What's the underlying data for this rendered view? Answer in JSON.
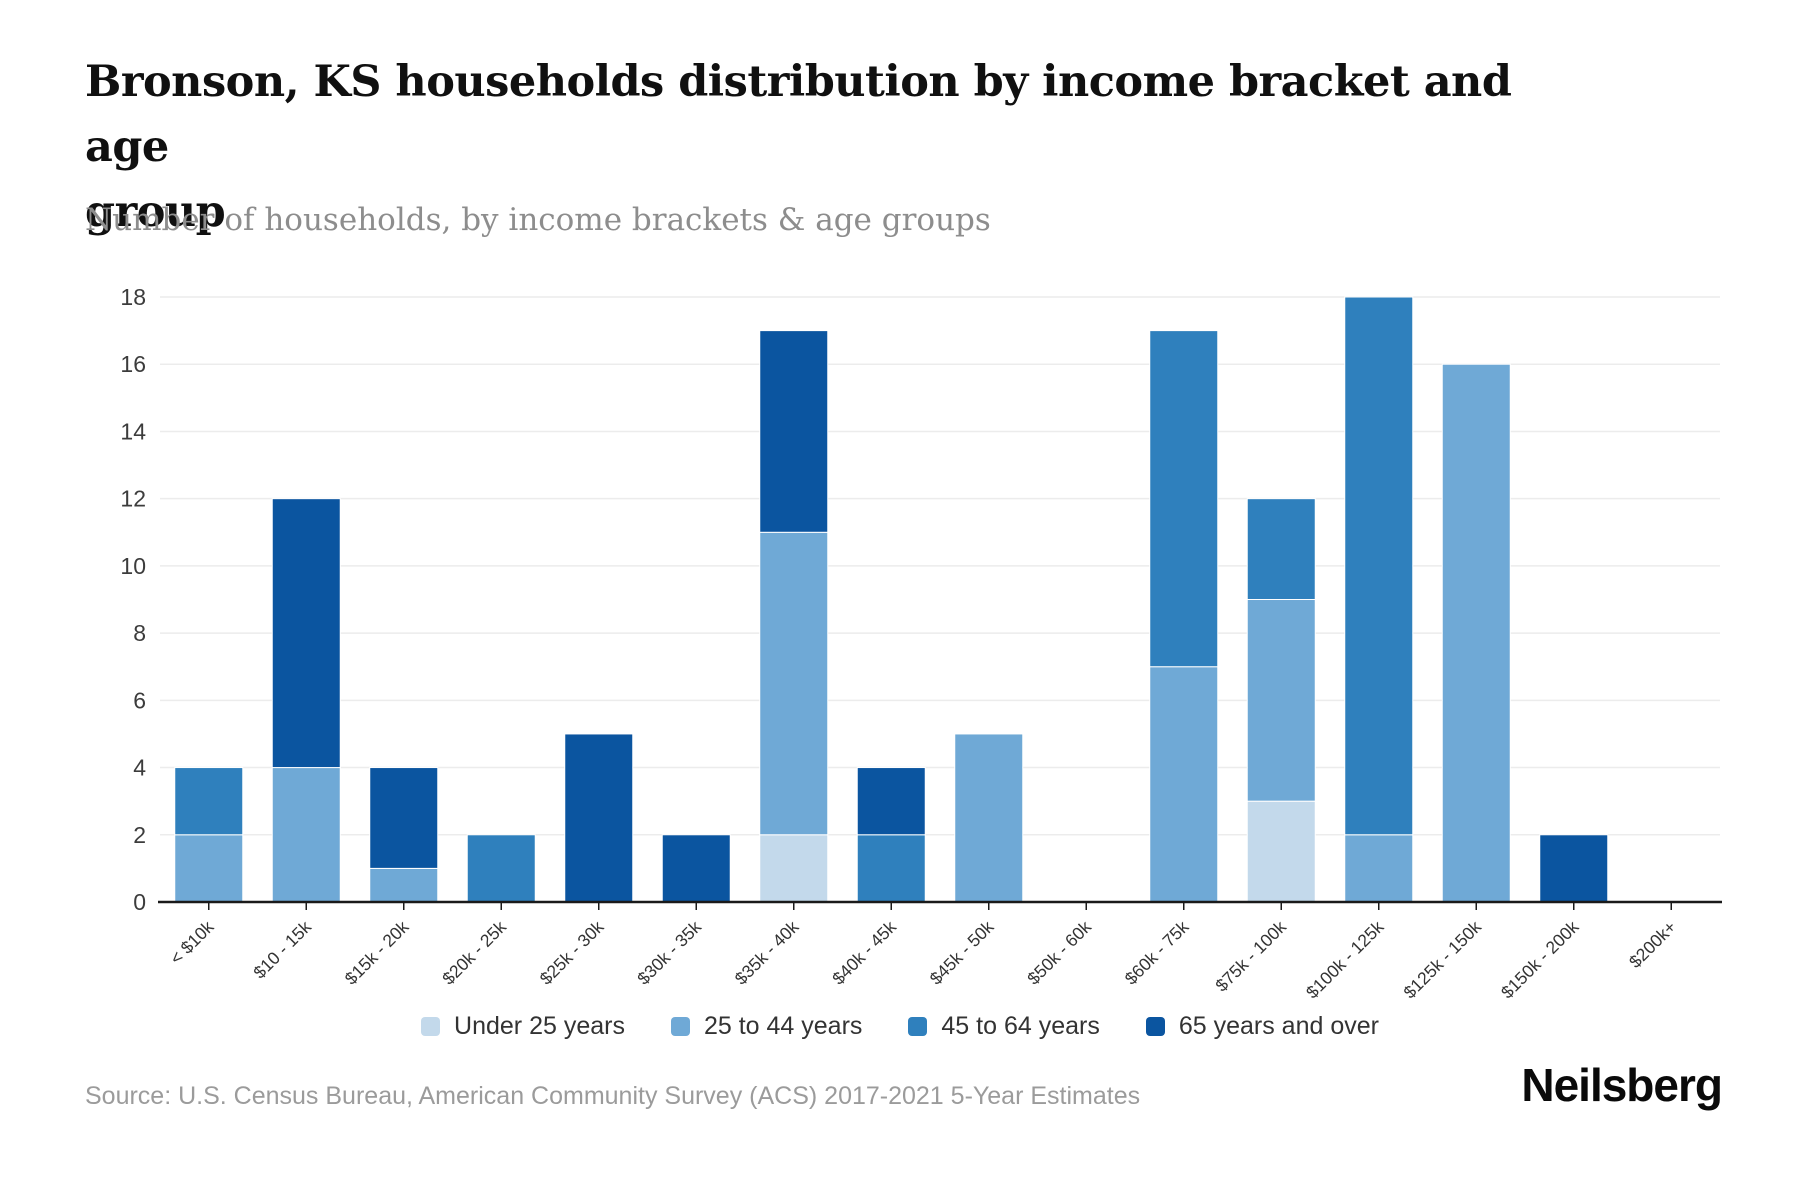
{
  "header": {
    "title_lines": [
      "Bronson, KS households distribution by income bracket and age",
      "group"
    ],
    "subtitle": "Number of households, by income brackets & age groups"
  },
  "chart_data": {
    "type": "bar",
    "stacked": true,
    "title": "Bronson, KS households distribution by income bracket and age group",
    "subtitle": "Number of households, by income brackets & age groups",
    "categories": [
      "< $10k",
      "$10 - 15k",
      "$15k - 20k",
      "$20k - 25k",
      "$25k - 30k",
      "$30k - 35k",
      "$35k - 40k",
      "$40k - 45k",
      "$45k - 50k",
      "$50k - 60k",
      "$60k - 75k",
      "$75k - 100k",
      "$100k - 125k",
      "$125k - 150k",
      "$150k - 200k",
      "$200k+"
    ],
    "series": [
      {
        "name": "Under 25 years",
        "color": "#c3d9eb",
        "values": [
          0,
          0,
          0,
          0,
          0,
          0,
          2,
          0,
          0,
          0,
          0,
          3,
          0,
          0,
          0,
          0
        ]
      },
      {
        "name": "25 to 44 years",
        "color": "#6fa9d6",
        "values": [
          2,
          4,
          1,
          0,
          0,
          0,
          9,
          0,
          5,
          0,
          7,
          6,
          2,
          16,
          0,
          0
        ]
      },
      {
        "name": "45 to 64 years",
        "color": "#2f80bd",
        "values": [
          2,
          0,
          0,
          2,
          0,
          0,
          0,
          2,
          0,
          0,
          10,
          3,
          16,
          0,
          0,
          0
        ]
      },
      {
        "name": "65 years and over",
        "color": "#0b55a0",
        "values": [
          0,
          8,
          3,
          0,
          5,
          2,
          6,
          2,
          0,
          0,
          0,
          0,
          0,
          0,
          2,
          0
        ]
      }
    ],
    "totals": [
      4,
      12,
      4,
      2,
      5,
      2,
      17,
      4,
      5,
      0,
      17,
      12,
      18,
      16,
      2,
      0
    ],
    "xlabel": "",
    "ylabel": "",
    "ylim": [
      0,
      18
    ],
    "ytick_step": 2,
    "grid": "horizontal",
    "legend_position": "bottom",
    "axis_color": "#1a1a1a",
    "grid_color": "#ececec",
    "tick_label_color": "#3c3c3c"
  },
  "footer": {
    "source": "Source: U.S. Census Bureau, American Community Survey (ACS) 2017-2021 5-Year Estimates",
    "brand": "Neilsberg"
  }
}
